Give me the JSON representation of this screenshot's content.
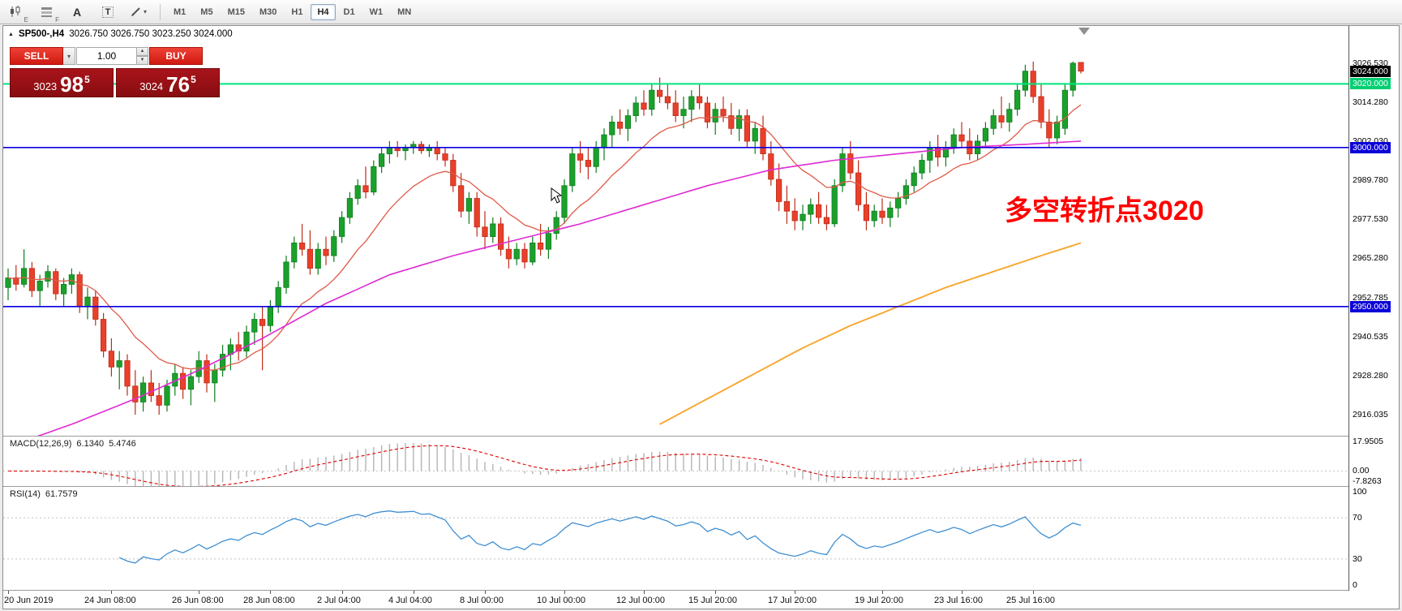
{
  "toolbar": {
    "icons": [
      {
        "name": "candlestick-chart-icon",
        "sub": "E"
      },
      {
        "name": "indicator-list-icon",
        "sub": "F"
      },
      {
        "name": "text-label-icon",
        "glyph": "A"
      },
      {
        "name": "text-box-icon",
        "glyph": "T"
      },
      {
        "name": "drawing-tools-icon",
        "caret": "▾"
      }
    ],
    "timeframes": [
      "M1",
      "M5",
      "M15",
      "M30",
      "H1",
      "H4",
      "D1",
      "W1",
      "MN"
    ],
    "active_timeframe": "H4"
  },
  "header": {
    "collapse_glyph": "▲",
    "symbol": "SP500-,H4",
    "ohlc": "3026.750 3026.750 3023.250 3024.000"
  },
  "trade_panel": {
    "sell_label": "SELL",
    "buy_label": "BUY",
    "volume": "1.00",
    "caret": "▾",
    "spin_up": "▲",
    "spin_down": "▼",
    "bid": {
      "prefix": "3023",
      "big": "98",
      "sup": "5"
    },
    "ask": {
      "prefix": "3024",
      "big": "76",
      "sup": "5"
    }
  },
  "annotation": {
    "text": "多空转折点3020"
  },
  "price_axis": {
    "labels": [
      {
        "text": "3026.530",
        "style": "plain"
      },
      {
        "text": "3024.000",
        "style": "current"
      },
      {
        "text": "3020.000",
        "style": "green"
      },
      {
        "text": "3014.280",
        "style": "plain"
      },
      {
        "text": "3002.030",
        "style": "plain"
      },
      {
        "text": "3000.000",
        "style": "blue"
      },
      {
        "text": "2989.780",
        "style": "plain"
      },
      {
        "text": "2977.530",
        "style": "plain"
      },
      {
        "text": "2965.280",
        "style": "plain"
      },
      {
        "text": "2952.785",
        "style": "plain"
      },
      {
        "text": "2950.000",
        "style": "blue"
      },
      {
        "text": "2940.535",
        "style": "plain"
      },
      {
        "text": "2928.280",
        "style": "plain"
      },
      {
        "text": "2916.035",
        "style": "plain"
      }
    ]
  },
  "time_axis": {
    "labels": [
      {
        "text": "20 Jun 2019",
        "bar": 0
      },
      {
        "text": "24 Jun 08:00",
        "bar": 13
      },
      {
        "text": "26 Jun 08:00",
        "bar": 24
      },
      {
        "text": "28 Jun 08:00",
        "bar": 33
      },
      {
        "text": "2 Jul 04:00",
        "bar": 42
      },
      {
        "text": "4 Jul 04:00",
        "bar": 51
      },
      {
        "text": "8 Jul 00:00",
        "bar": 60
      },
      {
        "text": "10 Jul 00:00",
        "bar": 70
      },
      {
        "text": "12 Jul 00:00",
        "bar": 80
      },
      {
        "text": "15 Jul 20:00",
        "bar": 89
      },
      {
        "text": "17 Jul 20:00",
        "bar": 99
      },
      {
        "text": "19 Jul 20:00",
        "bar": 110
      },
      {
        "text": "23 Jul 16:00",
        "bar": 120
      },
      {
        "text": "25 Jul 16:00",
        "bar": 129
      }
    ]
  },
  "indicators": {
    "macd": {
      "label": "MACD(12,26,9)",
      "value_main": "6.1340",
      "value_signal": "5.4746",
      "axis": [
        "17.9505",
        "0.00",
        "-7.8263"
      ],
      "range": [
        -7.8263,
        17.9505
      ]
    },
    "rsi": {
      "label": "RSI(14)",
      "value": "61.7579",
      "axis": [
        "100",
        "70",
        "30",
        "0"
      ],
      "levels": [
        70,
        30
      ],
      "range": [
        0,
        100
      ]
    }
  },
  "colors": {
    "up": "#1ba12b",
    "up_dark": "#0e7d1e",
    "down": "#e8402a",
    "down_dark": "#bf2c1a",
    "ma_fast": "#df5a48",
    "ma_mid": "#df2ad4",
    "ma_slow": "#f7a62c",
    "macd_hist": "#b4b4b4",
    "macd_signal": "#dd0000",
    "rsi_line": "#3f8fd2",
    "annotation": "#ff0000",
    "level_green": "#00e57e",
    "level_blue": "#0a00e0"
  },
  "chart_data": {
    "type": "candlestick",
    "symbol": "SP500-",
    "timeframe": "H4",
    "view_range": [
      2909.4,
      3038.2
    ],
    "current_price": 3024.0,
    "levels": [
      {
        "price": 3020,
        "color": "#00e57e",
        "width": 2
      },
      {
        "price": 3000,
        "color": "#0a00e0",
        "width": 1.6
      },
      {
        "price": 2950,
        "color": "#0a00e0",
        "width": 1.6
      }
    ],
    "ma_fast": {
      "period": 13
    },
    "ma_mid": {
      "points": [
        [
          0,
          2906
        ],
        [
          8,
          2913
        ],
        [
          16,
          2921
        ],
        [
          24,
          2930
        ],
        [
          32,
          2940
        ],
        [
          40,
          2951
        ],
        [
          48,
          2960
        ],
        [
          56,
          2966
        ],
        [
          64,
          2971
        ],
        [
          72,
          2976
        ],
        [
          80,
          2982
        ],
        [
          88,
          2988
        ],
        [
          96,
          2993
        ],
        [
          104,
          2996
        ],
        [
          112,
          2998
        ],
        [
          120,
          3000
        ],
        [
          128,
          3001
        ],
        [
          135,
          3002
        ]
      ]
    },
    "ma_slow": {
      "points": [
        [
          82,
          2913
        ],
        [
          88,
          2921
        ],
        [
          94,
          2929
        ],
        [
          100,
          2937
        ],
        [
          106,
          2944
        ],
        [
          112,
          2950
        ],
        [
          118,
          2956
        ],
        [
          124,
          2961
        ],
        [
          130,
          2966
        ],
        [
          135,
          2970
        ]
      ]
    },
    "candles": [
      [
        2956,
        2962,
        2952,
        2959
      ],
      [
        2959,
        2963,
        2955,
        2957
      ],
      [
        2957,
        2968,
        2956,
        2962
      ],
      [
        2962,
        2964,
        2953,
        2955
      ],
      [
        2955,
        2960,
        2950,
        2958
      ],
      [
        2958,
        2963,
        2956,
        2961
      ],
      [
        2961,
        2962,
        2952,
        2954
      ],
      [
        2954,
        2959,
        2950,
        2957
      ],
      [
        2957,
        2962,
        2954,
        2960
      ],
      [
        2960,
        2961,
        2948,
        2950
      ],
      [
        2950,
        2956,
        2946,
        2953
      ],
      [
        2953,
        2955,
        2944,
        2946
      ],
      [
        2946,
        2948,
        2934,
        2936
      ],
      [
        2936,
        2940,
        2928,
        2931
      ],
      [
        2931,
        2936,
        2924,
        2933
      ],
      [
        2933,
        2935,
        2922,
        2925
      ],
      [
        2925,
        2930,
        2916,
        2920
      ],
      [
        2920,
        2928,
        2917,
        2926
      ],
      [
        2926,
        2930,
        2920,
        2922
      ],
      [
        2922,
        2926,
        2916,
        2919
      ],
      [
        2919,
        2927,
        2917,
        2925
      ],
      [
        2925,
        2932,
        2922,
        2929
      ],
      [
        2929,
        2931,
        2921,
        2924
      ],
      [
        2924,
        2930,
        2919,
        2928
      ],
      [
        2928,
        2936,
        2926,
        2933
      ],
      [
        2933,
        2935,
        2923,
        2926
      ],
      [
        2926,
        2932,
        2920,
        2930
      ],
      [
        2930,
        2938,
        2928,
        2935
      ],
      [
        2935,
        2940,
        2930,
        2938
      ],
      [
        2938,
        2942,
        2933,
        2936
      ],
      [
        2936,
        2944,
        2934,
        2942
      ],
      [
        2942,
        2948,
        2938,
        2946
      ],
      [
        2946,
        2950,
        2930,
        2944
      ],
      [
        2944,
        2952,
        2942,
        2950
      ],
      [
        2950,
        2958,
        2948,
        2956
      ],
      [
        2956,
        2966,
        2954,
        2964
      ],
      [
        2964,
        2972,
        2962,
        2970
      ],
      [
        2970,
        2976,
        2966,
        2968
      ],
      [
        2968,
        2974,
        2960,
        2962
      ],
      [
        2962,
        2970,
        2960,
        2968
      ],
      [
        2968,
        2972,
        2963,
        2966
      ],
      [
        2966,
        2974,
        2964,
        2972
      ],
      [
        2972,
        2980,
        2970,
        2978
      ],
      [
        2978,
        2986,
        2976,
        2984
      ],
      [
        2984,
        2990,
        2982,
        2988
      ],
      [
        2988,
        2994,
        2984,
        2986
      ],
      [
        2986,
        2996,
        2985,
        2994
      ],
      [
        2994,
        3000,
        2992,
        2998
      ],
      [
        2998,
        3002,
        2995,
        3000
      ],
      [
        3000,
        3002,
        2997,
        2999
      ],
      [
        2999,
        3001,
        2996,
        3000
      ],
      [
        3000,
        3002,
        2998,
        3001
      ],
      [
        3001,
        3002,
        2998,
        2999
      ],
      [
        2999,
        3001,
        2997,
        3000
      ],
      [
        3000,
        3002,
        2996,
        2998
      ],
      [
        2998,
        3000,
        2994,
        2996
      ],
      [
        2996,
        2998,
        2986,
        2988
      ],
      [
        2988,
        2992,
        2978,
        2980
      ],
      [
        2980,
        2986,
        2976,
        2984
      ],
      [
        2984,
        2986,
        2972,
        2975
      ],
      [
        2975,
        2980,
        2968,
        2972
      ],
      [
        2972,
        2978,
        2970,
        2976
      ],
      [
        2976,
        2978,
        2966,
        2968
      ],
      [
        2968,
        2972,
        2962,
        2965
      ],
      [
        2965,
        2970,
        2963,
        2968
      ],
      [
        2968,
        2970,
        2962,
        2964
      ],
      [
        2964,
        2972,
        2963,
        2970
      ],
      [
        2970,
        2976,
        2966,
        2968
      ],
      [
        2968,
        2975,
        2965,
        2973
      ],
      [
        2973,
        2980,
        2971,
        2978
      ],
      [
        2978,
        2990,
        2976,
        2988
      ],
      [
        2988,
        3000,
        2986,
        2998
      ],
      [
        2998,
        3002,
        2992,
        2996
      ],
      [
        2996,
        3000,
        2990,
        2994
      ],
      [
        2994,
        3002,
        2992,
        3000
      ],
      [
        3000,
        3006,
        2996,
        3004
      ],
      [
        3004,
        3010,
        3000,
        3008
      ],
      [
        3008,
        3012,
        3004,
        3006
      ],
      [
        3006,
        3012,
        3002,
        3010
      ],
      [
        3010,
        3016,
        3008,
        3014
      ],
      [
        3014,
        3018,
        3010,
        3012
      ],
      [
        3012,
        3020,
        3010,
        3018
      ],
      [
        3018,
        3022,
        3014,
        3016
      ],
      [
        3016,
        3020,
        3012,
        3014
      ],
      [
        3014,
        3018,
        3008,
        3010
      ],
      [
        3010,
        3016,
        3006,
        3012
      ],
      [
        3012,
        3018,
        3008,
        3016
      ],
      [
        3016,
        3020,
        3012,
        3014
      ],
      [
        3014,
        3016,
        3006,
        3008
      ],
      [
        3008,
        3014,
        3004,
        3012
      ],
      [
        3012,
        3016,
        3008,
        3010
      ],
      [
        3010,
        3014,
        3004,
        3006
      ],
      [
        3006,
        3012,
        3002,
        3010
      ],
      [
        3010,
        3012,
        3000,
        3002
      ],
      [
        3002,
        3008,
        2998,
        3006
      ],
      [
        3006,
        3010,
        2996,
        2998
      ],
      [
        2998,
        3002,
        2988,
        2990
      ],
      [
        2990,
        2995,
        2980,
        2983
      ],
      [
        2983,
        2988,
        2976,
        2980
      ],
      [
        2980,
        2984,
        2974,
        2977
      ],
      [
        2977,
        2982,
        2974,
        2979
      ],
      [
        2979,
        2984,
        2976,
        2982
      ],
      [
        2982,
        2986,
        2976,
        2978
      ],
      [
        2978,
        2982,
        2974,
        2976
      ],
      [
        2976,
        2990,
        2975,
        2988
      ],
      [
        2988,
        3000,
        2986,
        2998
      ],
      [
        2998,
        3002,
        2990,
        2992
      ],
      [
        2992,
        2996,
        2980,
        2982
      ],
      [
        2982,
        2986,
        2974,
        2977
      ],
      [
        2977,
        2982,
        2975,
        2980
      ],
      [
        2980,
        2984,
        2976,
        2978
      ],
      [
        2978,
        2983,
        2975,
        2981
      ],
      [
        2981,
        2986,
        2978,
        2984
      ],
      [
        2984,
        2990,
        2982,
        2988
      ],
      [
        2988,
        2994,
        2986,
        2992
      ],
      [
        2992,
        2998,
        2990,
        2996
      ],
      [
        2996,
        3002,
        2992,
        3000
      ],
      [
        3000,
        3004,
        2994,
        2997
      ],
      [
        2997,
        3002,
        2994,
        3000
      ],
      [
        3000,
        3006,
        2998,
        3004
      ],
      [
        3004,
        3008,
        3000,
        3002
      ],
      [
        3002,
        3006,
        2996,
        2998
      ],
      [
        2998,
        3004,
        2996,
        3002
      ],
      [
        3002,
        3008,
        3000,
        3006
      ],
      [
        3006,
        3012,
        3004,
        3010
      ],
      [
        3010,
        3016,
        3006,
        3008
      ],
      [
        3008,
        3014,
        3005,
        3012
      ],
      [
        3012,
        3020,
        3010,
        3018
      ],
      [
        3018,
        3026,
        3016,
        3024
      ],
      [
        3024,
        3027,
        3014,
        3016
      ],
      [
        3016,
        3020,
        3006,
        3008
      ],
      [
        3008,
        3012,
        3000,
        3003
      ],
      [
        3003,
        3010,
        3001,
        3008
      ],
      [
        3006,
        3020,
        3004,
        3018
      ],
      [
        3018,
        3027,
        3016,
        3026.5
      ],
      [
        3026.75,
        3026.75,
        3023.25,
        3024
      ]
    ]
  }
}
